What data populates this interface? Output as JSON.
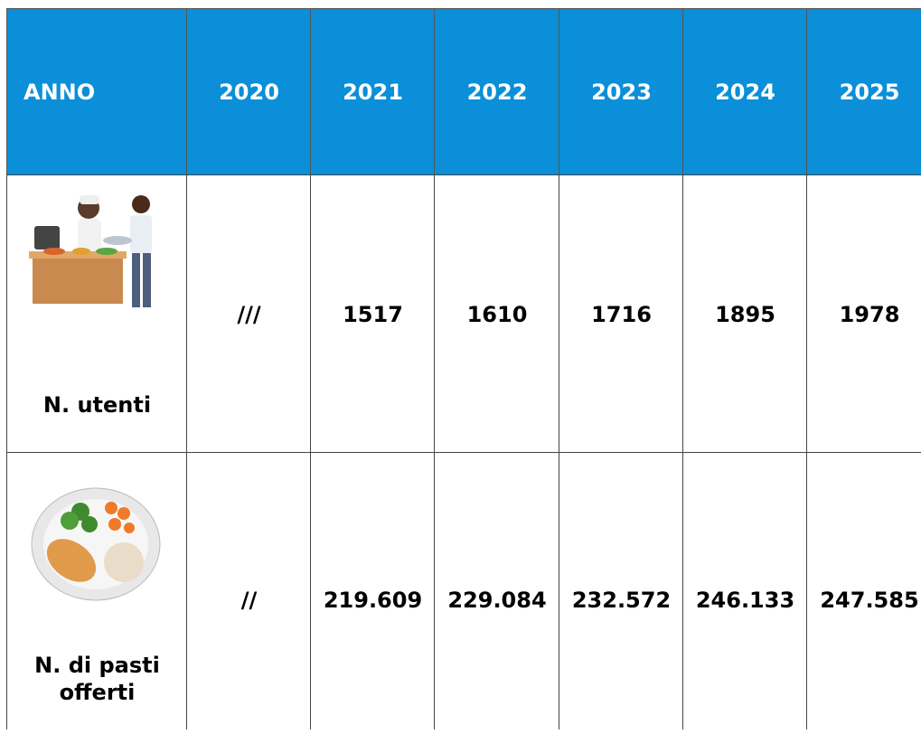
{
  "table": {
    "header": [
      "ANNO",
      "2020",
      "2021",
      "2022",
      "2023",
      "2024",
      "2025"
    ],
    "rows": [
      {
        "label": "N. utenti",
        "cells": [
          "///",
          "1517",
          "1610",
          "1716",
          "1895",
          "1978"
        ]
      },
      {
        "label": "N. di pasti offerti",
        "cells": [
          "//",
          "219.609",
          "229.084",
          "232.572",
          "246.133",
          "247.585"
        ]
      }
    ]
  }
}
